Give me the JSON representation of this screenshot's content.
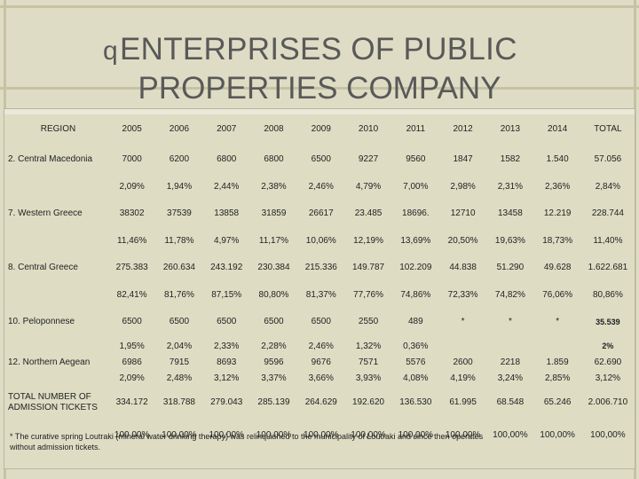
{
  "slide": {
    "title_line1": "ENTERPRISES OF PUBLIC",
    "title_line2": "PROPERTIES COMPANY",
    "bullet_icon": "q"
  },
  "table": {
    "header": {
      "region": "REGION",
      "years": [
        "2005",
        "2006",
        "2007",
        "2008",
        "2009",
        "2010",
        "2011",
        "2012",
        "2013",
        "2014"
      ],
      "total": "TOTAL"
    },
    "rows": [
      {
        "region": "2. Central Macedonia",
        "values": [
          "7000",
          "6200",
          "6800",
          "6800",
          "6500",
          "9227",
          "9560",
          "1847",
          "1582",
          "1.540",
          "57.056"
        ],
        "percents": [
          "2,09%",
          "1,94%",
          "2,44%",
          "2,38%",
          "2,46%",
          "4,79%",
          "7,00%",
          "2,98%",
          "2,31%",
          "2,36%",
          "2,84%"
        ]
      },
      {
        "region": "7. Western Greece",
        "values": [
          "38302",
          "37539",
          "13858",
          "31859",
          "26617",
          "23.485",
          "18696.",
          "12710",
          "13458",
          "12.219",
          "228.744"
        ],
        "percents": [
          "11,46%",
          "11,78%",
          "4,97%",
          "11,17%",
          "10,06%",
          "12,19%",
          "13,69%",
          "20,50%",
          "19,63%",
          "18,73%",
          "11,40%"
        ]
      },
      {
        "region": "8. Central Greece",
        "values": [
          "275.383",
          "260.634",
          "243.192",
          "230.384",
          "215.336",
          "149.787",
          "102.209",
          "44.838",
          "51.290",
          "49.628",
          "1.622.681"
        ],
        "percents": [
          "82,41%",
          "81,76%",
          "87,15%",
          "80,80%",
          "81,37%",
          "77,76%",
          "74,86%",
          "72,33%",
          "74,82%",
          "76,06%",
          "80,86%"
        ]
      },
      {
        "region": "10. Peloponnese",
        "values": [
          "6500",
          "6500",
          "6500",
          "6500",
          "6500",
          "2550",
          "489",
          "*",
          "*",
          "*",
          "35.539"
        ],
        "percents": [
          "1,95%",
          "2,04%",
          "2,33%",
          "2,28%",
          "2,46%",
          "1,32%",
          "0,36%",
          "",
          "",
          "",
          "2%"
        ]
      },
      {
        "region": "12. Northern Aegean",
        "values": [
          "6986",
          "7915",
          "8693",
          "9596",
          "9676",
          "7571",
          "5576",
          "2600",
          "2218",
          "1.859",
          "62.690"
        ],
        "percents": [
          "2,09%",
          "2,48%",
          "3,12%",
          "3,37%",
          "3,66%",
          "3,93%",
          "4,08%",
          "4,19%",
          "3,24%",
          "2,85%",
          "3,12%"
        ]
      },
      {
        "region_line1": "TOTAL NUMBER OF",
        "region_line2": "ADMISSION TICKETS",
        "values": [
          "334.172",
          "318.788",
          "279.043",
          "285.139",
          "264.629",
          "192.620",
          "136.530",
          "61.995",
          "68.548",
          "65.246",
          "2.006.710"
        ],
        "percents": [
          "100,00%",
          "100,00%",
          "100,00%",
          "100,00%",
          "100,00%",
          "100,00%",
          "100,00%",
          "100,00%",
          "100,00%",
          "100,00%",
          "100,00%"
        ]
      }
    ],
    "footnote": "* The curative spring Loutraki (mineral water drinking therapy) was relinquished to the municipality of Loutraki and since then operates without admission tickets."
  }
}
